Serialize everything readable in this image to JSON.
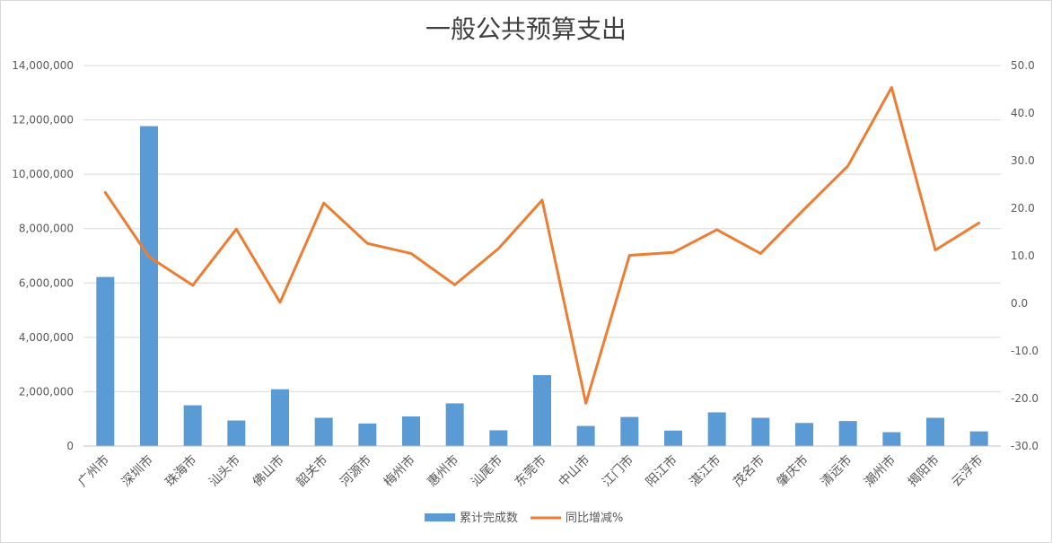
{
  "chart_data": {
    "type": "bar",
    "title": "一般公共预算支出",
    "categories": [
      "广州市",
      "深圳市",
      "珠海市",
      "汕头市",
      "佛山市",
      "韶关市",
      "河源市",
      "梅州市",
      "惠州市",
      "汕尾市",
      "东莞市",
      "中山市",
      "江门市",
      "阳江市",
      "湛江市",
      "茂名市",
      "肇庆市",
      "清远市",
      "潮州市",
      "揭阳市",
      "云浮市"
    ],
    "series": [
      {
        "name": "累计完成数",
        "type": "bar",
        "axis": "left",
        "color": "#5b9bd5",
        "values": [
          6220000,
          11770000,
          1500000,
          940000,
          2090000,
          1040000,
          830000,
          1090000,
          1570000,
          580000,
          2610000,
          740000,
          1070000,
          570000,
          1240000,
          1040000,
          850000,
          920000,
          510000,
          1040000,
          540000
        ]
      },
      {
        "name": "同比增减%",
        "type": "line",
        "axis": "right",
        "color": "#ed7d31",
        "values": [
          23.3,
          9.8,
          3.8,
          15.6,
          0.2,
          21.1,
          12.6,
          10.5,
          3.9,
          11.5,
          21.7,
          -21.0,
          10.1,
          10.7,
          15.5,
          10.5,
          19.8,
          28.9,
          45.4,
          11.2,
          16.9
        ]
      }
    ],
    "y_left": {
      "lim": [
        0,
        14000000
      ],
      "ticks": [
        0,
        2000000,
        4000000,
        6000000,
        8000000,
        10000000,
        12000000,
        14000000
      ],
      "tick_labels": [
        "0",
        "2,000,000",
        "4,000,000",
        "6,000,000",
        "8,000,000",
        "10,000,000",
        "12,000,000",
        "14,000,000"
      ]
    },
    "y_right": {
      "lim": [
        -30,
        50
      ],
      "ticks": [
        -30,
        -20,
        -10,
        0,
        10,
        20,
        30,
        40,
        50
      ],
      "tick_labels": [
        "-30.0",
        "-20.0",
        "-10.0",
        "0.0",
        "10.0",
        "20.0",
        "30.0",
        "40.0",
        "50.0"
      ]
    },
    "grid": true,
    "legend": "bottom-center"
  }
}
